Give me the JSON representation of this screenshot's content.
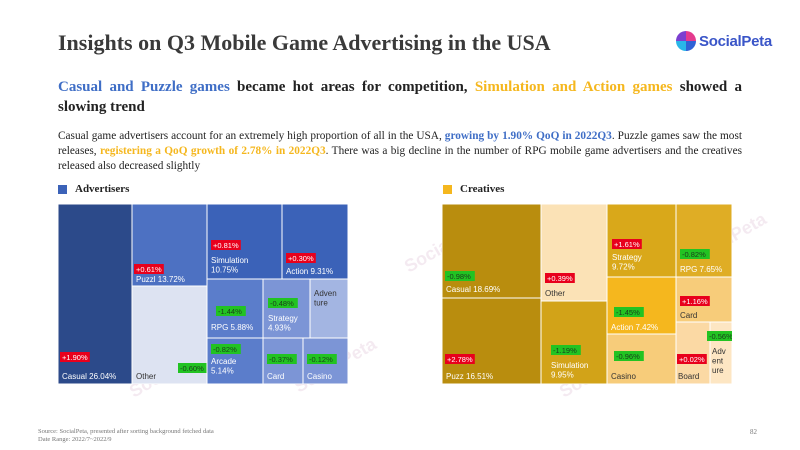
{
  "title": "Insights on Q3 Mobile Game Advertising in the USA",
  "logo": {
    "text": "SocialPeta",
    "icon": "socialpeta-logo-icon"
  },
  "headline": {
    "part1": "Casual and Puzzle games",
    "part2": " became hot areas for competition, ",
    "part3": "Simulation and Action games",
    "part4": " showed a slowing trend"
  },
  "paragraph": {
    "part1": "Casual game advertisers account for an extremely high proportion of all in the USA, ",
    "part2": "growing by 1.90% QoQ in 2022Q3",
    "part3": ". Puzzle games saw the most releases, ",
    "part4": "registering a QoQ growth of 2.78% in 2022Q3",
    "part5": ". There was a big decline in the number of RPG mobile game advertisers and the creatives released also decreased slightly"
  },
  "colors": {
    "blue_accent": "#3f6ec6",
    "orange_accent": "#f5b71e",
    "pos_badge": "#e8001c",
    "neg_badge": "#22c322",
    "legend_advertisers": "#3b62b8",
    "legend_creatives": "#f5b71e"
  },
  "footer": {
    "source": "Source: SocialPeta, presented after sorting background fetched data",
    "date_range": "Date Range: 2022/7~2022/9"
  },
  "page_number": "82",
  "watermark": "SocialPeta",
  "chart_data": [
    {
      "type": "treemap",
      "title": "Advertisers",
      "cells": [
        {
          "name": "Casual",
          "share": "26.04%",
          "change": "+1.90%",
          "trend": "up",
          "color": "#2c4a8a"
        },
        {
          "name": "Other",
          "share": "",
          "change": "-0.60%",
          "trend": "down",
          "color": "#dde3f2"
        },
        {
          "name": "Puzzl",
          "share": "13.72%",
          "change": "+0.61%",
          "trend": "up",
          "color": "#4d71c2"
        },
        {
          "name": "Simulation",
          "share": "10.75%",
          "change": "+0.81%",
          "trend": "up",
          "color": "#3b62b8"
        },
        {
          "name": "Action",
          "share": "9.31%",
          "change": "+0.30%",
          "trend": "up",
          "color": "#3b62b8"
        },
        {
          "name": "RPG",
          "share": "5.88%",
          "change": "-1.44%",
          "trend": "down",
          "color": "#5b7dcb"
        },
        {
          "name": "Strategy",
          "share": "4.93%",
          "change": "-0.48%",
          "trend": "down",
          "color": "#7c95d6"
        },
        {
          "name": "Adven ture",
          "share": "",
          "change": "",
          "trend": "",
          "color": "#a3b5e2"
        },
        {
          "name": "Arcade",
          "share": "5.14%",
          "change": "-0.82%",
          "trend": "down",
          "color": "#5b7dcb"
        },
        {
          "name": "Card",
          "share": "",
          "change": "-0.37%",
          "trend": "down",
          "color": "#7c95d6"
        },
        {
          "name": "Casino",
          "share": "",
          "change": "-0.12%",
          "trend": "down",
          "color": "#7c95d6"
        }
      ]
    },
    {
      "type": "treemap",
      "title": "Creatives",
      "cells": [
        {
          "name": "Casual",
          "share": "18.69%",
          "change": "-0.98%",
          "trend": "down",
          "color": "#b98d0e"
        },
        {
          "name": "Puzz",
          "share": "16.51%",
          "change": "+2.78%",
          "trend": "up",
          "color": "#b98d0e"
        },
        {
          "name": "Other",
          "share": "",
          "change": "+0.39%",
          "trend": "up",
          "color": "#fbe2b6"
        },
        {
          "name": "Simulation",
          "share": "9.95%",
          "change": "-1.19%",
          "trend": "down",
          "color": "#d2a318"
        },
        {
          "name": "Strategy",
          "share": "9.72%",
          "change": "+1.61%",
          "trend": "up",
          "color": "#d9a81a"
        },
        {
          "name": "RPG",
          "share": "7.65%",
          "change": "-0.82%",
          "trend": "down",
          "color": "#dfad25"
        },
        {
          "name": "Action",
          "share": "7.42%",
          "change": "-1.45%",
          "trend": "down",
          "color": "#f5b71e"
        },
        {
          "name": "Card",
          "share": "",
          "change": "+1.16%",
          "trend": "up",
          "color": "#f7cc7a"
        },
        {
          "name": "Casino",
          "share": "",
          "change": "-0.96%",
          "trend": "down",
          "color": "#f7cc7a"
        },
        {
          "name": "Board",
          "share": "",
          "change": "+0.02%",
          "trend": "up",
          "color": "#fbd9a4"
        },
        {
          "name": "Adv ent ure",
          "share": "",
          "change": "-0.56%",
          "trend": "down",
          "color": "#fde6c3"
        }
      ]
    }
  ]
}
